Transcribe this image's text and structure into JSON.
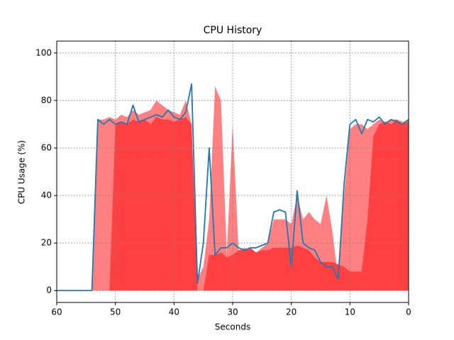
{
  "chart_data": {
    "type": "line",
    "title": "CPU History",
    "x_label": "Seconds",
    "y_label": "CPU Usage (%)",
    "x": [
      60,
      59,
      58,
      57,
      56,
      55,
      54,
      53,
      52,
      51,
      50,
      49,
      48,
      47,
      46,
      45,
      44,
      43,
      42,
      41,
      40,
      39,
      38,
      37,
      36,
      35,
      34,
      33,
      32,
      31,
      30,
      29,
      28,
      27,
      26,
      25,
      24,
      23,
      22,
      21,
      20,
      19,
      18,
      17,
      16,
      15,
      14,
      13,
      12,
      11,
      10,
      9,
      8,
      7,
      6,
      5,
      4,
      3,
      2,
      1,
      0
    ],
    "series": [
      {
        "kind": "area",
        "color": "#ff8080",
        "values": [
          0,
          0,
          0,
          0,
          0,
          0,
          0,
          72,
          72,
          73,
          72,
          74,
          73,
          76,
          74,
          75,
          76,
          80,
          78,
          76,
          75,
          74,
          80,
          70,
          5,
          10,
          30,
          86,
          80,
          15,
          70,
          17,
          18,
          17,
          16,
          18,
          20,
          30,
          30,
          30,
          28,
          40,
          30,
          33,
          30,
          28,
          40,
          25,
          5,
          40,
          68,
          70,
          70,
          68,
          70,
          72,
          71,
          72,
          72,
          71,
          72
        ]
      },
      {
        "kind": "area",
        "color": "#ff4040",
        "values": [
          0,
          0,
          0,
          0,
          0,
          0,
          0,
          0,
          0,
          0,
          70,
          71,
          70,
          72,
          71,
          72,
          70,
          73,
          72,
          72,
          71,
          72,
          73,
          70,
          0,
          0,
          15,
          15,
          16,
          14,
          15,
          17,
          17,
          18,
          16,
          17,
          17,
          18,
          18,
          18,
          18,
          19,
          18,
          17,
          14,
          12,
          12,
          12,
          11,
          10,
          8,
          8,
          8,
          30,
          65,
          70,
          71,
          70,
          72,
          70,
          71
        ]
      },
      {
        "kind": "line",
        "color": "#1f77b4",
        "values": [
          0,
          0,
          0,
          0,
          0,
          0,
          0,
          72,
          70,
          72,
          70,
          71,
          70,
          78,
          71,
          72,
          73,
          74,
          73,
          76,
          73,
          72,
          75,
          87,
          3,
          20,
          60,
          15,
          18,
          18,
          20,
          18,
          17,
          18,
          18,
          19,
          20,
          33,
          34,
          33,
          10,
          42,
          20,
          18,
          17,
          12,
          10,
          10,
          5,
          45,
          70,
          72,
          66,
          72,
          71,
          73,
          70,
          72,
          71,
          70,
          72
        ]
      }
    ],
    "xlim": [
      60,
      0
    ],
    "xticks": [
      60,
      50,
      40,
      30,
      20,
      10,
      0
    ],
    "ylim": [
      -5,
      105
    ],
    "yticks": [
      0,
      20,
      40,
      60,
      80,
      100
    ],
    "grid": true
  }
}
